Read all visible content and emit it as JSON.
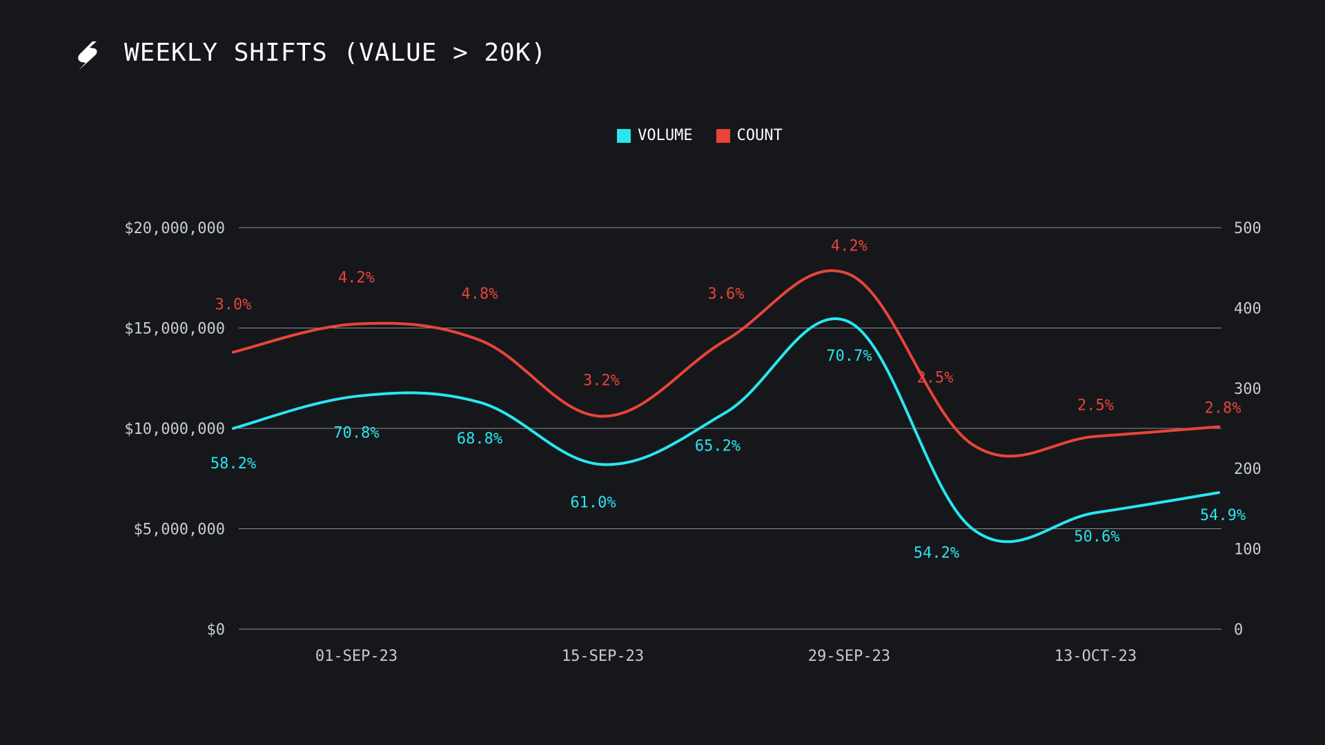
{
  "title": "WEEKLY SHIFTS (VALUE > 20K)",
  "logo_icon": "shapeshift-s-logo-icon",
  "colors": {
    "background": "#16171b",
    "volume": "#29e6ef",
    "count": "#e8443a",
    "grid": "#8e9096",
    "axis_text": "#c9ccd2"
  },
  "legend": [
    {
      "label": "VOLUME",
      "color": "#29e6ef"
    },
    {
      "label": "COUNT",
      "color": "#e8443a"
    }
  ],
  "chart_data": {
    "type": "line",
    "title": "WEEKLY SHIFTS (VALUE > 20K)",
    "x": [
      "25-AUG-23",
      "01-SEP-23",
      "08-SEP-23",
      "15-SEP-23",
      "22-SEP-23",
      "29-SEP-23",
      "06-OCT-23",
      "13-OCT-23",
      "20-OCT-23"
    ],
    "x_tick_labels": [
      "01-SEP-23",
      "15-SEP-23",
      "29-SEP-23",
      "13-OCT-23"
    ],
    "y_left": {
      "ticks": [
        0,
        5000000,
        10000000,
        15000000,
        20000000
      ],
      "tick_labels": [
        "$0",
        "$5,000,000",
        "$10,000,000",
        "$15,000,000",
        "$20,000,000"
      ],
      "range": [
        0,
        20000000
      ]
    },
    "y_right": {
      "ticks": [
        0,
        100,
        200,
        300,
        400,
        500
      ],
      "tick_labels": [
        "0",
        "100",
        "200",
        "300",
        "400",
        "500"
      ],
      "range": [
        0,
        500
      ]
    },
    "grid": true,
    "legend_position": "top-center",
    "series": [
      {
        "name": "VOLUME",
        "axis": "left",
        "values": [
          10000000,
          11600000,
          11300000,
          8200000,
          10800000,
          15300000,
          5000000,
          5800000,
          6800000
        ],
        "labels": [
          "58.2%",
          "70.8%",
          "68.8%",
          "61.0%",
          "65.2%",
          "70.7%",
          "54.2%",
          "50.6%",
          "54.9%"
        ]
      },
      {
        "name": "COUNT",
        "axis": "right",
        "values": [
          345,
          380,
          360,
          265,
          360,
          442,
          230,
          240,
          252
        ],
        "labels": [
          "3.0%",
          "4.2%",
          "4.8%",
          "3.2%",
          "3.6%",
          "4.2%",
          "2.5%",
          "2.5%",
          "2.8%"
        ]
      }
    ]
  }
}
